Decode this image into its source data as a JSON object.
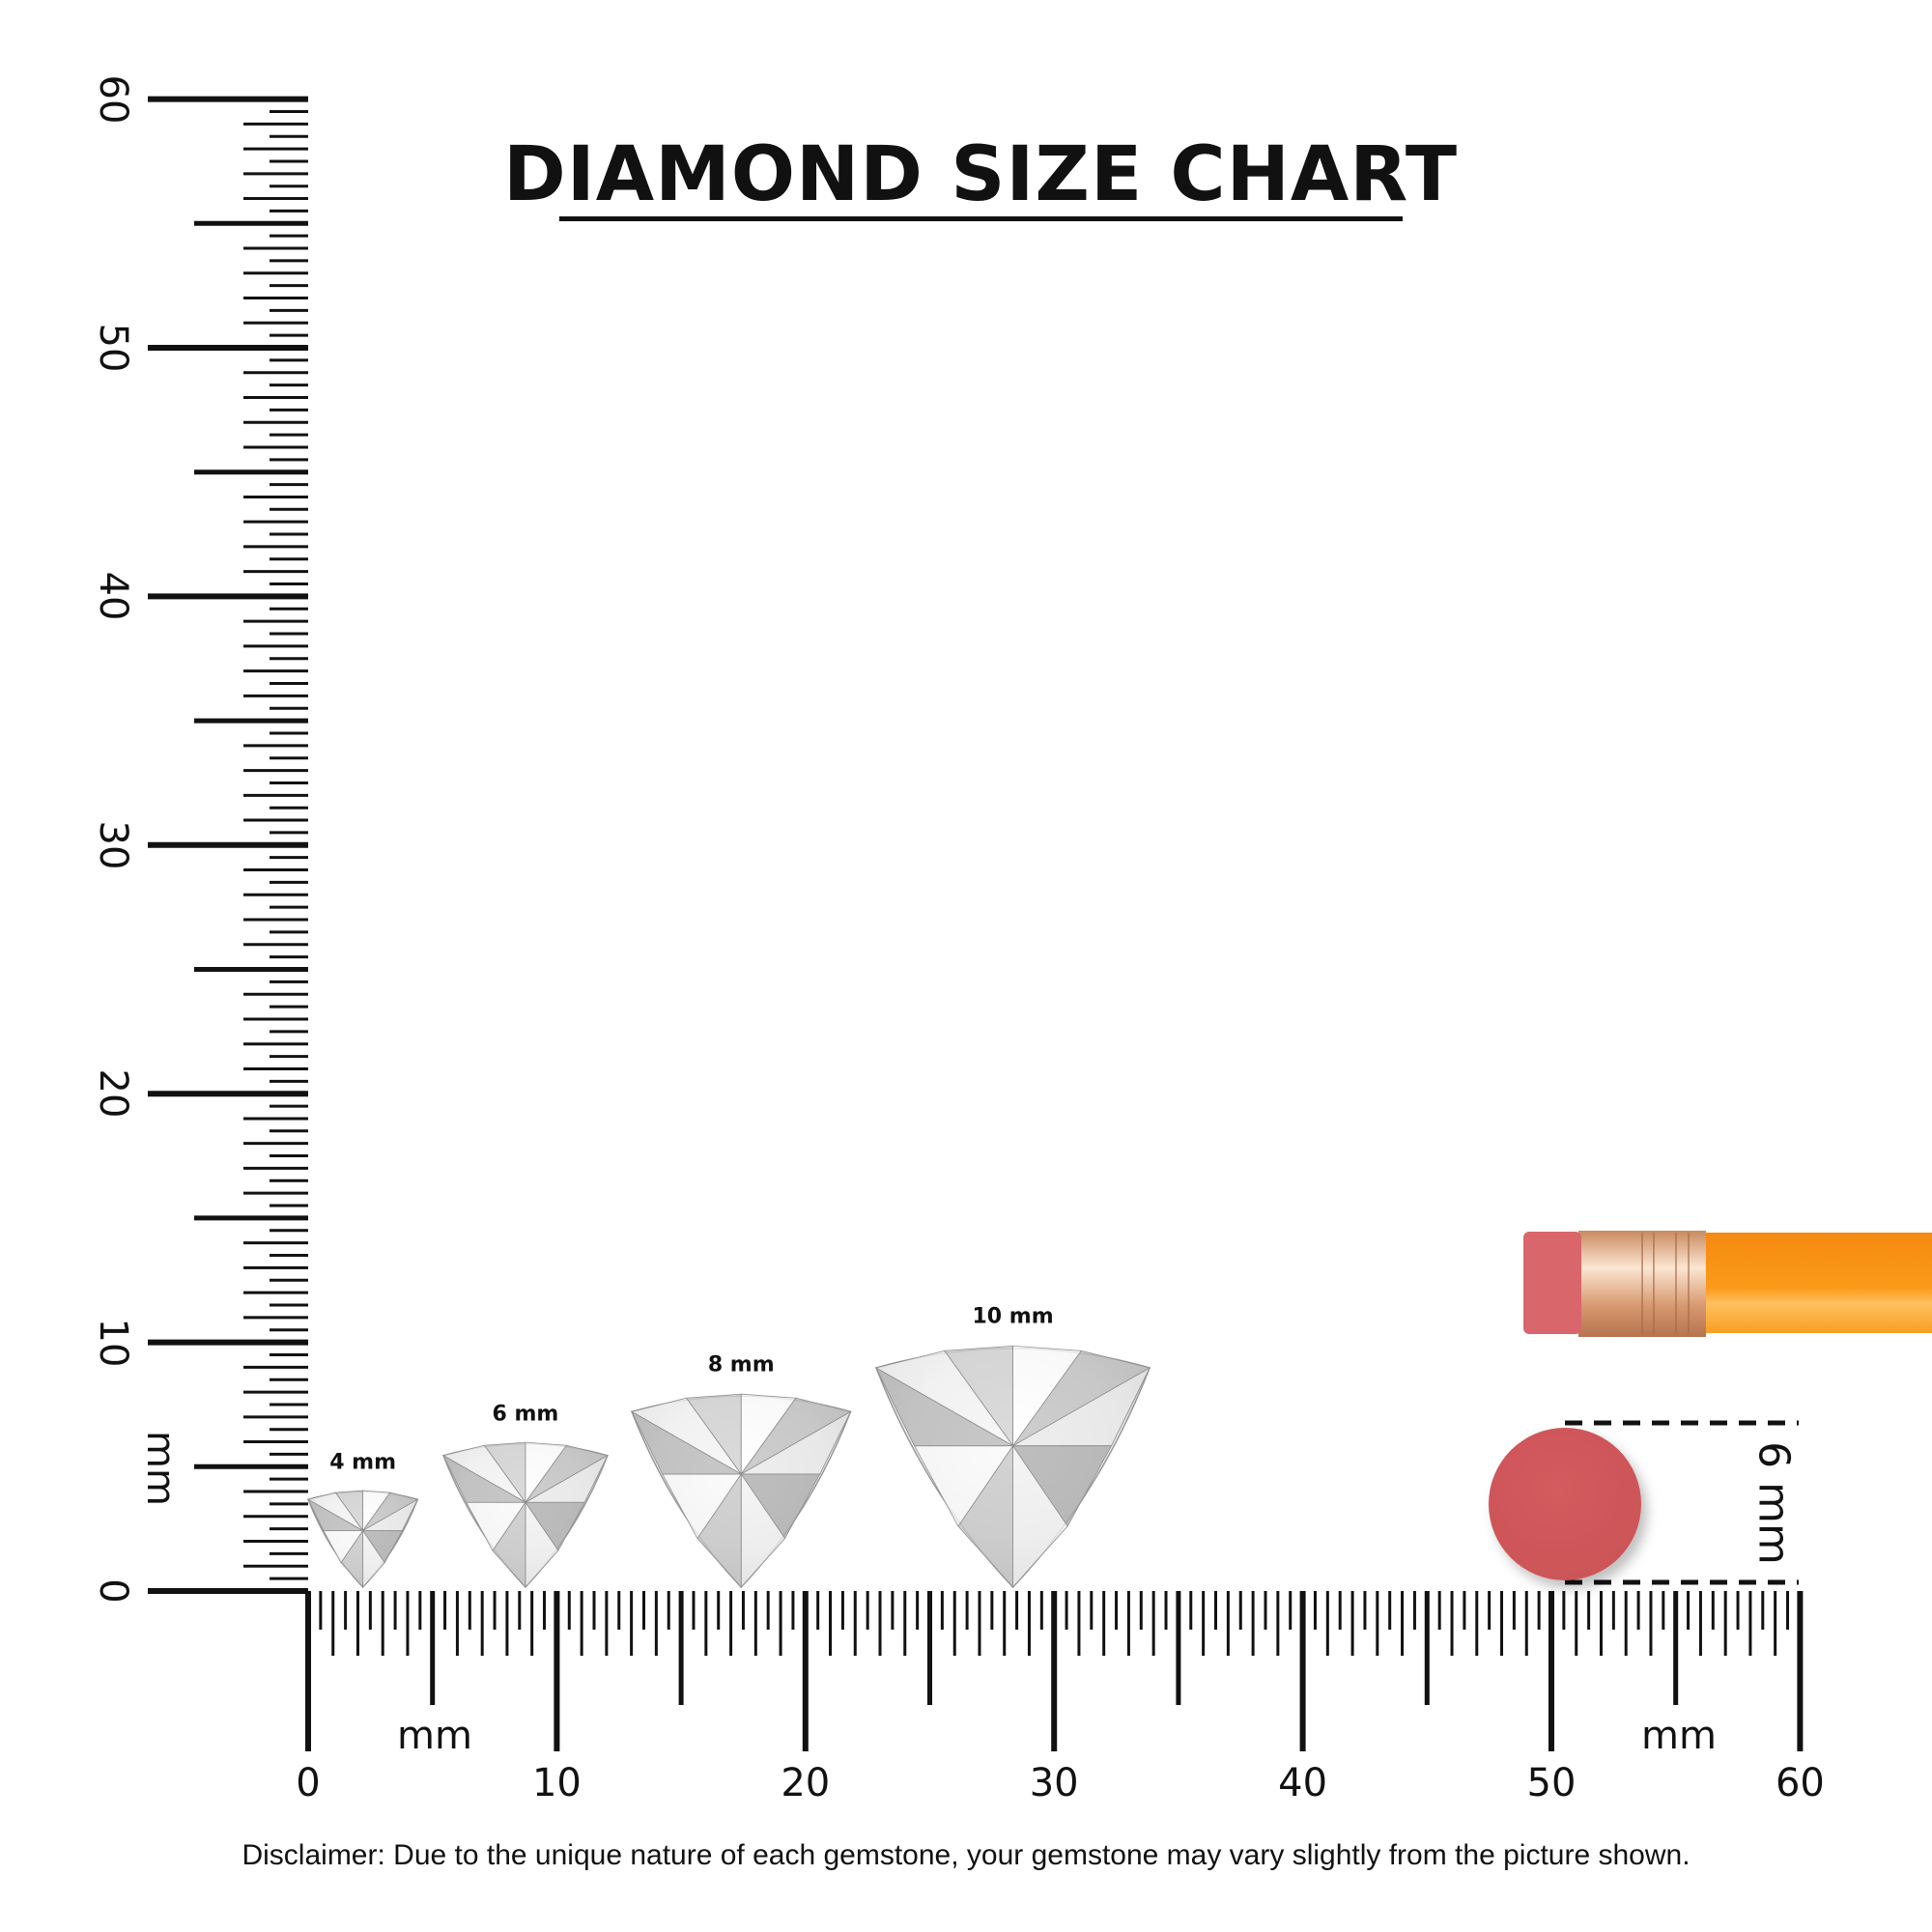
{
  "title": "DIAMOND SIZE CHART",
  "ruler": {
    "unit_label": "mm",
    "range_mm": [
      0,
      60
    ],
    "tick_labels": [
      "0",
      "10",
      "20",
      "30",
      "40",
      "50",
      "60"
    ]
  },
  "diamonds": [
    {
      "label": "4 mm",
      "size_mm": 4
    },
    {
      "label": "6 mm",
      "size_mm": 6
    },
    {
      "label": "8 mm",
      "size_mm": 8
    },
    {
      "label": "10 mm",
      "size_mm": 10
    }
  ],
  "eraser_reference": {
    "label": "6 mm",
    "color": "#d25a5c"
  },
  "pencil": {
    "eraser_color": "#d9666a",
    "ferrule_color": "#d9a07a",
    "body_color": "#f7920f"
  },
  "disclaimer": "Disclaimer: Due to the unique nature of each gemstone, your gemstone may vary slightly from the picture shown."
}
